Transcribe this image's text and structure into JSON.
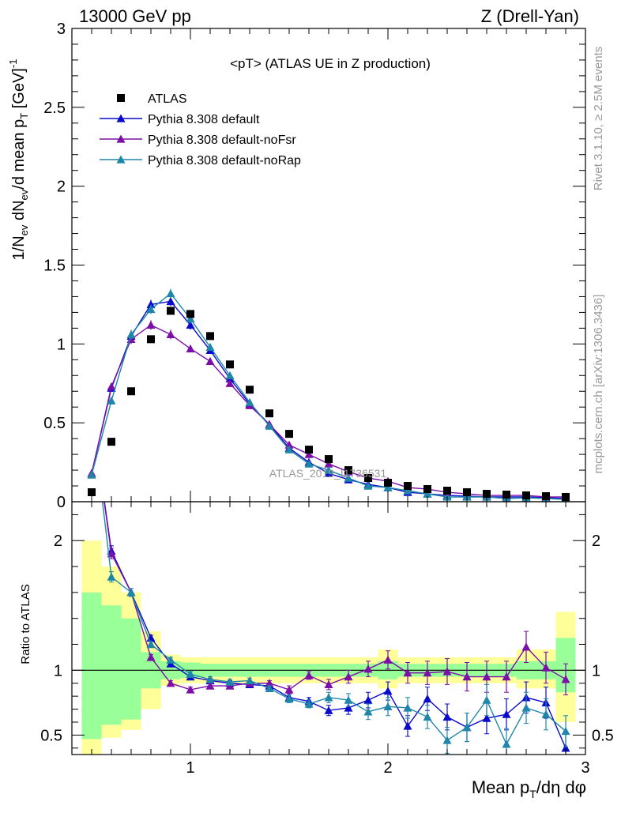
{
  "header": {
    "left": "13000 GeV pp",
    "right": "Z (Drell-Yan)"
  },
  "plot_title": "<pT> (ATLAS UE in Z production)",
  "watermark": "ATLAS_2019_I1736531",
  "side_labels": {
    "rivet": "Rivet 3.1.10, ≥ 2.5M events",
    "mcplots": "mcplots.cern.ch [arXiv:1306.3436]"
  },
  "colors": {
    "atlas": "#000000",
    "pythia_default": "#0a0acd",
    "pythia_nofsr": "#7b0fa8",
    "pythia_norap": "#1e86a8",
    "band_yellow": "#ffff99",
    "band_green": "#99ff99"
  },
  "chart_data": [
    {
      "type": "scatter",
      "panel": "main",
      "ylabel": "1/N_ev dN_ev/d mean p_T [GeV]^-1",
      "xlim": [
        0.4,
        3.0
      ],
      "ylim": [
        0,
        3.0
      ],
      "yticks": [
        0,
        0.5,
        1,
        1.5,
        2,
        2.5,
        3
      ],
      "ytick_labels": [
        "0",
        "0.5",
        "1",
        "1.5",
        "2",
        "2.5",
        "3"
      ],
      "legend_position": "top-left",
      "legend": [
        "ATLAS",
        "Pythia 8.308 default",
        "Pythia 8.308 default-noFsr",
        "Pythia 8.308 default-noRap"
      ],
      "x": [
        0.5,
        0.6,
        0.7,
        0.8,
        0.9,
        1.0,
        1.1,
        1.2,
        1.3,
        1.4,
        1.5,
        1.6,
        1.7,
        1.8,
        1.9,
        2.0,
        2.1,
        2.2,
        2.3,
        2.4,
        2.5,
        2.6,
        2.7,
        2.8,
        2.9
      ],
      "series": [
        {
          "name": "ATLAS",
          "marker": "square",
          "values": [
            0.06,
            0.38,
            0.7,
            1.03,
            1.21,
            1.19,
            1.05,
            0.87,
            0.71,
            0.56,
            0.43,
            0.33,
            0.27,
            0.2,
            0.15,
            0.12,
            0.1,
            0.08,
            0.07,
            0.06,
            0.05,
            0.045,
            0.04,
            0.035,
            0.03
          ]
        },
        {
          "name": "Pythia 8.308 default",
          "marker": "triangle",
          "values": [
            0.18,
            0.72,
            1.05,
            1.25,
            1.27,
            1.12,
            0.96,
            0.78,
            0.62,
            0.49,
            0.34,
            0.25,
            0.18,
            0.14,
            0.11,
            0.09,
            0.06,
            0.05,
            0.04,
            0.035,
            0.03,
            0.03,
            0.03,
            0.025,
            0.02
          ],
          "errors": [
            0.01,
            0.02,
            0.03,
            0.03,
            0.03,
            0.03,
            0.02,
            0.02,
            0.02,
            0.01,
            0.01,
            0.01,
            0.01,
            0.01,
            0.01,
            0.01,
            0.005,
            0.005,
            0.005,
            0.005,
            0.005,
            0.005,
            0.005,
            0.005,
            0.005
          ]
        },
        {
          "name": "Pythia 8.308 default-noFsr",
          "marker": "triangle",
          "values": [
            0.18,
            0.73,
            1.03,
            1.12,
            1.06,
            0.97,
            0.89,
            0.75,
            0.61,
            0.49,
            0.36,
            0.3,
            0.24,
            0.19,
            0.15,
            0.13,
            0.09,
            0.08,
            0.06,
            0.05,
            0.04,
            0.04,
            0.04,
            0.03,
            0.03
          ],
          "errors": [
            0.01,
            0.02,
            0.03,
            0.03,
            0.03,
            0.02,
            0.02,
            0.02,
            0.02,
            0.01,
            0.01,
            0.01,
            0.01,
            0.01,
            0.01,
            0.01,
            0.005,
            0.005,
            0.005,
            0.005,
            0.005,
            0.005,
            0.005,
            0.005,
            0.005
          ]
        },
        {
          "name": "Pythia 8.308 default-noRap",
          "marker": "triangle",
          "values": [
            0.17,
            0.64,
            1.06,
            1.22,
            1.32,
            1.16,
            0.98,
            0.8,
            0.63,
            0.48,
            0.33,
            0.24,
            0.2,
            0.15,
            0.1,
            0.09,
            0.07,
            0.05,
            0.03,
            0.03,
            0.03,
            0.02,
            0.025,
            0.02,
            0.015
          ],
          "errors": [
            0.01,
            0.02,
            0.03,
            0.03,
            0.03,
            0.03,
            0.02,
            0.02,
            0.02,
            0.01,
            0.01,
            0.01,
            0.01,
            0.01,
            0.01,
            0.01,
            0.005,
            0.005,
            0.005,
            0.005,
            0.005,
            0.005,
            0.005,
            0.005,
            0.005
          ]
        }
      ]
    },
    {
      "type": "line",
      "panel": "ratio",
      "ylabel": "Ratio to ATLAS",
      "xlabel": "Mean p_T/dη dφ",
      "xlim": [
        0.4,
        3.0
      ],
      "ylim": [
        0.35,
        2.3
      ],
      "xticks": [
        1,
        2,
        3
      ],
      "xtick_labels": [
        "1",
        "2",
        "3"
      ],
      "yticks": [
        0.5,
        1,
        2
      ],
      "ytick_labels": [
        "0.5",
        "1",
        "2"
      ],
      "reference_line": 1,
      "bin_edges": [
        0.45,
        0.55,
        0.65,
        0.75,
        0.85,
        0.95,
        1.05,
        1.15,
        1.25,
        1.35,
        1.45,
        1.55,
        1.65,
        1.75,
        1.85,
        1.95,
        2.05,
        2.15,
        2.25,
        2.35,
        2.45,
        2.55,
        2.65,
        2.75,
        2.85,
        2.95
      ],
      "band_inner": {
        "lower": [
          0.47,
          0.58,
          0.62,
          0.86,
          0.93,
          0.94,
          0.95,
          0.95,
          0.95,
          0.95,
          0.95,
          0.95,
          0.95,
          0.95,
          0.95,
          0.93,
          0.95,
          0.95,
          0.95,
          0.95,
          0.95,
          0.95,
          0.93,
          0.93,
          0.83
        ],
        "upper": [
          1.6,
          1.5,
          1.4,
          1.14,
          1.07,
          1.06,
          1.05,
          1.05,
          1.05,
          1.05,
          1.05,
          1.05,
          1.05,
          1.05,
          1.05,
          1.07,
          1.05,
          1.05,
          1.05,
          1.05,
          1.05,
          1.05,
          1.07,
          1.07,
          1.25
        ]
      },
      "band_outer": {
        "lower": [
          0.33,
          0.48,
          0.54,
          0.7,
          0.88,
          0.9,
          0.9,
          0.9,
          0.9,
          0.9,
          0.9,
          0.9,
          0.9,
          0.9,
          0.9,
          0.86,
          0.9,
          0.9,
          0.9,
          0.9,
          0.9,
          0.9,
          0.86,
          0.86,
          0.6
        ],
        "upper": [
          2.0,
          1.8,
          1.6,
          1.3,
          1.12,
          1.1,
          1.1,
          1.1,
          1.1,
          1.1,
          1.1,
          1.1,
          1.1,
          1.1,
          1.1,
          1.16,
          1.1,
          1.1,
          1.1,
          1.1,
          1.1,
          1.1,
          1.16,
          1.16,
          1.45
        ]
      },
      "x": [
        0.5,
        0.6,
        0.7,
        0.8,
        0.9,
        1.0,
        1.1,
        1.2,
        1.3,
        1.4,
        1.5,
        1.6,
        1.7,
        1.8,
        1.9,
        2.0,
        2.1,
        2.2,
        2.3,
        2.4,
        2.5,
        2.6,
        2.7,
        2.8,
        2.9
      ],
      "series": [
        {
          "name": "Pythia 8.308 default",
          "values": [
            3.0,
            1.92,
            1.6,
            1.25,
            1.05,
            0.95,
            0.92,
            0.9,
            0.89,
            0.88,
            0.79,
            0.76,
            0.69,
            0.71,
            0.77,
            0.84,
            0.57,
            0.78,
            0.64,
            0.56,
            0.63,
            0.66,
            0.79,
            0.75,
            0.4
          ],
          "errors": [
            0.1,
            0.04,
            0.03,
            0.02,
            0.02,
            0.02,
            0.02,
            0.02,
            0.02,
            0.02,
            0.03,
            0.03,
            0.04,
            0.05,
            0.06,
            0.07,
            0.08,
            0.09,
            0.1,
            0.11,
            0.12,
            0.12,
            0.12,
            0.12,
            0.12
          ]
        },
        {
          "name": "Pythia 8.308 default-noFsr",
          "values": [
            3.0,
            1.9,
            1.6,
            1.1,
            0.9,
            0.85,
            0.88,
            0.88,
            0.9,
            0.9,
            0.85,
            0.96,
            0.89,
            0.95,
            1.01,
            1.08,
            0.98,
            0.98,
            0.99,
            0.95,
            0.95,
            0.95,
            1.18,
            1.02,
            0.93
          ],
          "errors": [
            0.1,
            0.04,
            0.03,
            0.02,
            0.02,
            0.02,
            0.02,
            0.02,
            0.02,
            0.02,
            0.03,
            0.03,
            0.04,
            0.05,
            0.06,
            0.07,
            0.08,
            0.09,
            0.1,
            0.11,
            0.12,
            0.12,
            0.12,
            0.12,
            0.12
          ]
        },
        {
          "name": "Pythia 8.308 default-noRap",
          "values": [
            3.0,
            1.72,
            1.6,
            1.2,
            1.08,
            0.97,
            0.93,
            0.91,
            0.92,
            0.86,
            0.78,
            0.74,
            0.79,
            0.77,
            0.68,
            0.72,
            0.71,
            0.64,
            0.46,
            0.56,
            0.77,
            0.43,
            0.71,
            0.66,
            0.53
          ],
          "errors": [
            0.1,
            0.04,
            0.03,
            0.02,
            0.02,
            0.02,
            0.02,
            0.02,
            0.02,
            0.02,
            0.03,
            0.03,
            0.04,
            0.05,
            0.06,
            0.07,
            0.08,
            0.09,
            0.1,
            0.11,
            0.12,
            0.12,
            0.12,
            0.12,
            0.12
          ]
        }
      ]
    }
  ]
}
